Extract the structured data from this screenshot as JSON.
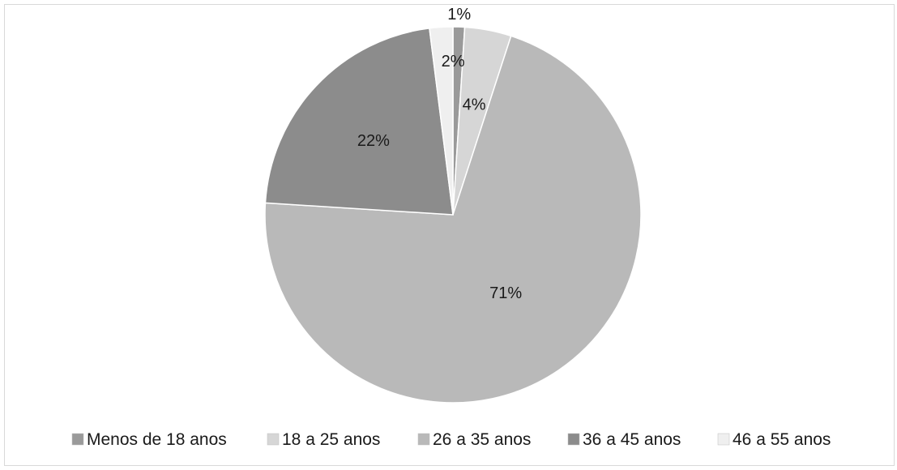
{
  "chart_data": {
    "type": "pie",
    "categories": [
      "Menos de 18 anos",
      "18 a 25 anos",
      "26 a 35 anos",
      "36 a 45 anos",
      "46 a 55 anos"
    ],
    "values": [
      1,
      4,
      71,
      22,
      2
    ],
    "data_labels": [
      "1%",
      "4%",
      "71%",
      "22%",
      "2%"
    ],
    "colors": [
      "#9a9a9a",
      "#d6d6d6",
      "#b9b9b9",
      "#8c8c8c",
      "#efefef"
    ],
    "start_angle_deg": 0,
    "direction": "clockwise",
    "legend_position": "bottom",
    "title": ""
  }
}
